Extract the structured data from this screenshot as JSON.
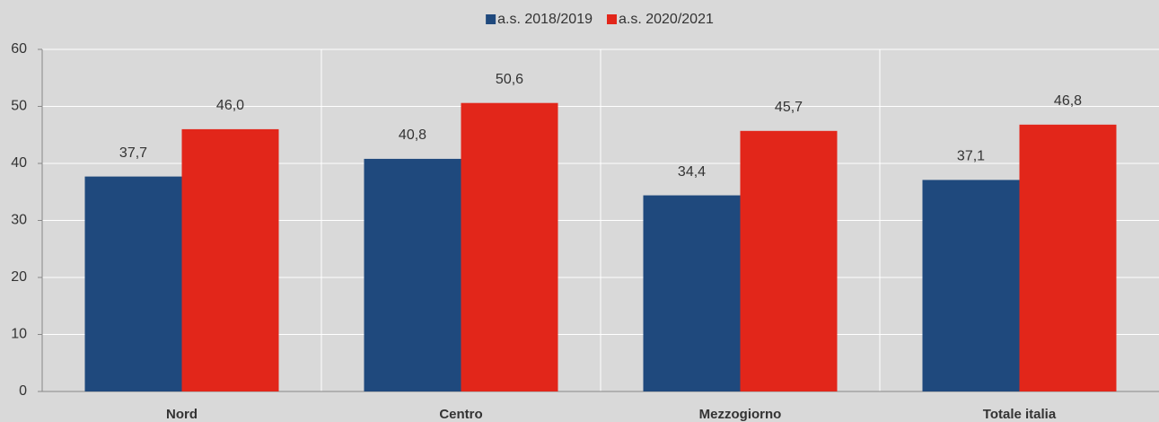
{
  "chart_data": {
    "type": "bar",
    "categories": [
      "Nord",
      "Centro",
      "Mezzogiorno",
      "Totale italia"
    ],
    "series": [
      {
        "name": "a.s. 2018/2019",
        "color": "#1f497d",
        "values": [
          37.7,
          40.8,
          34.4,
          37.1
        ],
        "value_labels": [
          "37,7",
          "40,8",
          "34,4",
          "37,1"
        ]
      },
      {
        "name": "a.s. 2020/2021",
        "color": "#e2261a",
        "values": [
          46.0,
          50.6,
          45.7,
          46.8
        ],
        "value_labels": [
          "46,0",
          "50,6",
          "45,7",
          "46,8"
        ]
      }
    ],
    "ylim": [
      0,
      60
    ],
    "yticks": [
      0,
      10,
      20,
      30,
      40,
      50,
      60
    ],
    "grid": true,
    "legend": "top"
  }
}
